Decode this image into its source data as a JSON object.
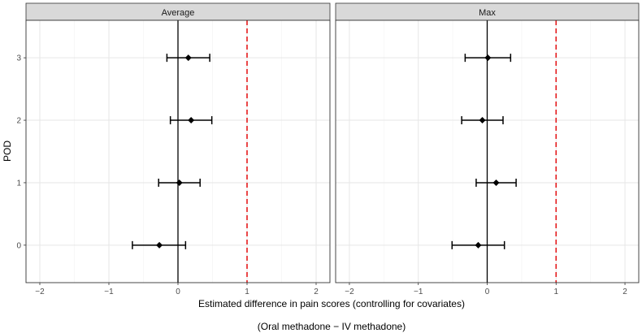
{
  "chart_data": {
    "type": "scatter",
    "subtype": "forest-plot-faceted",
    "xlabel": "Estimated difference in pain scores (controlling for covariates)",
    "xlabel_note": "(Oral methadone − IV methadone)",
    "ylabel": "POD",
    "xlim": [
      -2.2,
      2.2
    ],
    "ylim": [
      -0.6,
      3.6
    ],
    "x_ticks": [
      -2,
      -1,
      0,
      1,
      2
    ],
    "x_tick_labels": [
      "−2",
      "−1",
      "0",
      "1",
      "2"
    ],
    "y_ticks": [
      0,
      1,
      2,
      3
    ],
    "y_tick_labels": [
      "0",
      "1",
      "2",
      "3"
    ],
    "reference_lines": [
      {
        "x": 0,
        "style": "solid",
        "color": "#000000"
      },
      {
        "x": 1,
        "style": "dashed",
        "color": "#e41a1c"
      }
    ],
    "grid": true,
    "facets": [
      {
        "name": "Average",
        "points": [
          {
            "pod": 0,
            "estimate": -0.27,
            "lower": -0.66,
            "upper": 0.11
          },
          {
            "pod": 1,
            "estimate": 0.02,
            "lower": -0.28,
            "upper": 0.32
          },
          {
            "pod": 2,
            "estimate": 0.19,
            "lower": -0.11,
            "upper": 0.49
          },
          {
            "pod": 3,
            "estimate": 0.15,
            "lower": -0.16,
            "upper": 0.46
          }
        ]
      },
      {
        "name": "Max",
        "points": [
          {
            "pod": 0,
            "estimate": -0.13,
            "lower": -0.51,
            "upper": 0.25
          },
          {
            "pod": 1,
            "estimate": 0.13,
            "lower": -0.16,
            "upper": 0.42
          },
          {
            "pod": 2,
            "estimate": -0.07,
            "lower": -0.37,
            "upper": 0.23
          },
          {
            "pod": 3,
            "estimate": 0.01,
            "lower": -0.32,
            "upper": 0.34
          }
        ]
      }
    ]
  }
}
